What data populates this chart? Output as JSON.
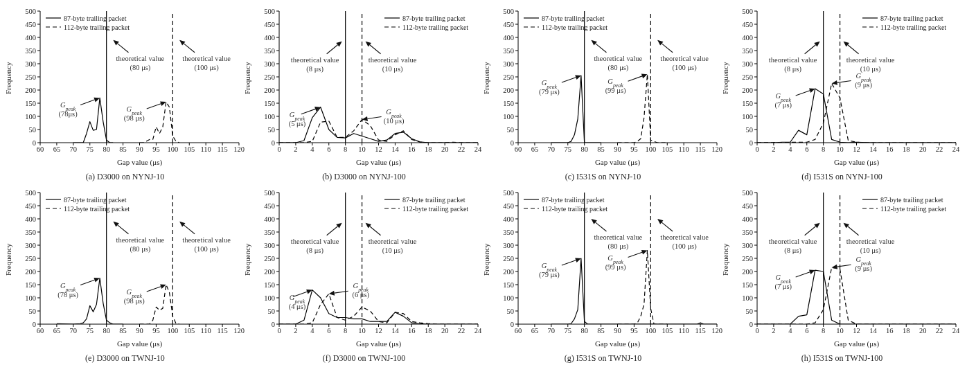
{
  "chart_data": [
    {
      "type": "line",
      "title": "(a) D3000 on NYNJ-10",
      "xlabel": "Gap value (μs)",
      "ylabel": "Frequency",
      "xlim": [
        60,
        120
      ],
      "xticks": [
        60,
        65,
        70,
        75,
        80,
        85,
        90,
        95,
        100,
        105,
        110,
        115,
        120
      ],
      "ylim": [
        0,
        500
      ],
      "yticks": [
        0,
        50,
        100,
        150,
        200,
        250,
        300,
        350,
        400,
        450,
        500
      ],
      "legend": "top left",
      "marker": "none",
      "series": [
        {
          "name": "87-byte trailing packet",
          "color": "#000000",
          "line_style": "solid",
          "x": [
            70,
            71,
            72,
            73,
            74,
            75,
            76,
            77,
            78,
            79,
            80,
            81,
            82
          ],
          "values": [
            0,
            0,
            0,
            0,
            35,
            80,
            47,
            50,
            170,
            80,
            10,
            0,
            0
          ]
        },
        {
          "name": "112-byte trailing packet",
          "color": "#000000",
          "line_style": "dashed",
          "x": [
            90,
            91,
            92,
            93,
            94,
            95,
            96,
            97,
            98,
            99,
            100,
            101,
            102
          ],
          "values": [
            0,
            0,
            5,
            12,
            12,
            60,
            35,
            60,
            155,
            135,
            25,
            5,
            0
          ]
        }
      ],
      "ref_lines": [
        {
          "axis": "x",
          "value": 80,
          "color": "#000000",
          "line_style": "solid"
        },
        {
          "axis": "x",
          "value": 100,
          "color": "#000000",
          "line_style": "dashed"
        }
      ],
      "annotations": [
        {
          "text": "theoretical value (80 μs)",
          "x": 81,
          "y": 390
        },
        {
          "text": "theoretical value (100 μs)",
          "x": 101,
          "y": 390
        },
        {
          "text": "G$_{peak}$ (78μs)",
          "x": 78,
          "y": 170
        },
        {
          "text": "G$_{peak}$ (98 μs)",
          "x": 98,
          "y": 155
        }
      ]
    },
    {
      "type": "line",
      "title": "(b) D3000 on NYNJ-100",
      "xlabel": "Gap value (μs)",
      "ylabel": "Frequency",
      "xlim": [
        0,
        24
      ],
      "xticks": [
        0,
        2,
        4,
        6,
        8,
        10,
        12,
        14,
        16,
        18,
        20,
        22,
        24
      ],
      "ylim": [
        0,
        500
      ],
      "yticks": [
        0,
        50,
        100,
        150,
        200,
        250,
        300,
        350,
        400,
        450,
        500
      ],
      "legend": "top right",
      "marker": "none",
      "series": [
        {
          "name": "87-byte trailing packet",
          "color": "#000000",
          "line_style": "solid",
          "x": [
            0,
            1,
            2,
            3,
            4,
            5,
            6,
            7,
            8,
            9,
            10,
            11,
            12,
            13,
            14,
            15,
            16,
            17,
            18,
            19,
            20,
            21,
            22,
            23,
            24
          ],
          "values": [
            0,
            0,
            0,
            8,
            95,
            135,
            50,
            20,
            18,
            35,
            25,
            15,
            5,
            10,
            35,
            40,
            15,
            3,
            0,
            0,
            0,
            0,
            0,
            0,
            0
          ]
        },
        {
          "name": "112-byte trailing packet",
          "color": "#000000",
          "line_style": "dashed",
          "x": [
            0,
            1,
            2,
            3,
            4,
            5,
            6,
            7,
            8,
            9,
            10,
            11,
            12,
            13,
            14,
            15,
            16,
            17,
            18,
            19,
            20,
            21,
            22,
            23,
            24
          ],
          "values": [
            0,
            0,
            0,
            0,
            5,
            78,
            82,
            20,
            20,
            45,
            88,
            65,
            10,
            5,
            30,
            45,
            12,
            2,
            0,
            0,
            0,
            2,
            0,
            0,
            0
          ]
        }
      ],
      "ref_lines": [
        {
          "axis": "x",
          "value": 8,
          "color": "#000000",
          "line_style": "solid"
        },
        {
          "axis": "x",
          "value": 10,
          "color": "#000000",
          "line_style": "dashed"
        }
      ],
      "annotations": [
        {
          "text": "theoretical value (8 μs)",
          "x": 8,
          "y": 385
        },
        {
          "text": "theoretical value (10 μs)",
          "x": 10,
          "y": 385
        },
        {
          "text": "G$_{peak}$ (5 μs)",
          "x": 5,
          "y": 135
        },
        {
          "text": "G$_{peak}$ (10 μs)",
          "x": 10,
          "y": 88
        }
      ]
    },
    {
      "type": "line",
      "title": "(c) I531S on NYNJ-10",
      "xlabel": "Gap value (μs)",
      "ylabel": "Frequency",
      "xlim": [
        60,
        120
      ],
      "xticks": [
        60,
        65,
        70,
        75,
        80,
        85,
        90,
        95,
        100,
        105,
        110,
        115,
        120
      ],
      "ylim": [
        0,
        500
      ],
      "yticks": [
        0,
        50,
        100,
        150,
        200,
        250,
        300,
        350,
        400,
        450,
        500
      ],
      "legend": "top left",
      "marker": "none",
      "series": [
        {
          "name": "87-byte trailing packet",
          "color": "#000000",
          "line_style": "solid",
          "x": [
            70,
            75,
            76,
            77,
            78,
            79,
            80,
            81,
            85
          ],
          "values": [
            0,
            0,
            5,
            30,
            90,
            255,
            0,
            0,
            0
          ]
        },
        {
          "name": "112-byte trailing packet",
          "color": "#000000",
          "line_style": "dashed",
          "x": [
            90,
            95,
            96,
            97,
            98,
            99,
            100,
            101,
            102,
            105
          ],
          "values": [
            0,
            0,
            5,
            15,
            95,
            260,
            10,
            5,
            0,
            0
          ]
        }
      ],
      "ref_lines": [
        {
          "axis": "x",
          "value": 80,
          "color": "#000000",
          "line_style": "solid"
        },
        {
          "axis": "x",
          "value": 100,
          "color": "#000000",
          "line_style": "dashed"
        }
      ],
      "annotations": [
        {
          "text": "theoretical value (80 μs)",
          "x": 81,
          "y": 390
        },
        {
          "text": "theoretical value (100 μs)",
          "x": 101,
          "y": 390
        },
        {
          "text": "G$_{peak}$ (79 μs)",
          "x": 79,
          "y": 255
        },
        {
          "text": "G$_{peak}$ (99 μs)",
          "x": 99,
          "y": 260
        }
      ]
    },
    {
      "type": "line",
      "title": "(d) I531S on NYNJ-100",
      "xlabel": "Gap value (μs)",
      "ylabel": "Frequency",
      "xlim": [
        0,
        24
      ],
      "xticks": [
        0,
        2,
        4,
        6,
        8,
        10,
        12,
        14,
        16,
        18,
        20,
        22,
        24
      ],
      "ylim": [
        0,
        500
      ],
      "yticks": [
        0,
        50,
        100,
        150,
        200,
        250,
        300,
        350,
        400,
        450,
        500
      ],
      "legend": "top right",
      "marker": "none",
      "series": [
        {
          "name": "87-byte trailing packet",
          "color": "#000000",
          "line_style": "solid",
          "x": [
            0,
            2,
            3,
            4,
            5,
            6,
            7,
            8,
            9,
            10,
            11,
            12,
            14,
            24
          ],
          "values": [
            0,
            0,
            2,
            2,
            47,
            30,
            205,
            185,
            12,
            2,
            0,
            2,
            0,
            0
          ]
        },
        {
          "name": "112-byte trailing packet",
          "color": "#000000",
          "line_style": "dashed",
          "x": [
            0,
            6,
            7,
            8,
            9,
            10,
            11,
            12,
            13,
            24
          ],
          "values": [
            0,
            2,
            12,
            75,
            225,
            170,
            8,
            2,
            0,
            0
          ]
        }
      ],
      "ref_lines": [
        {
          "axis": "x",
          "value": 8,
          "color": "#000000",
          "line_style": "solid"
        },
        {
          "axis": "x",
          "value": 10,
          "color": "#000000",
          "line_style": "dashed"
        }
      ],
      "annotations": [
        {
          "text": "theoretical value (8 μs)",
          "x": 8,
          "y": 385
        },
        {
          "text": "theoretical value (10 μs)",
          "x": 10,
          "y": 385
        },
        {
          "text": "G$_{peak}$ (7 μs)",
          "x": 7,
          "y": 205
        },
        {
          "text": "G$_{peak}$ (9 μs)",
          "x": 9,
          "y": 225
        }
      ]
    },
    {
      "type": "line",
      "title": "(e) D3000 on TWNJ-10",
      "xlabel": "Gap value (μs)",
      "ylabel": "Frequency",
      "xlim": [
        60,
        120
      ],
      "xticks": [
        60,
        65,
        70,
        75,
        80,
        85,
        90,
        95,
        100,
        105,
        110,
        115,
        120
      ],
      "ylim": [
        0,
        500
      ],
      "yticks": [
        0,
        50,
        100,
        150,
        200,
        250,
        300,
        350,
        400,
        450,
        500
      ],
      "legend": "top left",
      "marker": "none",
      "series": [
        {
          "name": "87-byte trailing packet",
          "color": "#000000",
          "line_style": "solid",
          "x": [
            65,
            70,
            72,
            73,
            74,
            75,
            76,
            77,
            78,
            79,
            80,
            81,
            82,
            85
          ],
          "values": [
            2,
            0,
            2,
            5,
            20,
            70,
            47,
            75,
            175,
            80,
            15,
            5,
            0,
            0
          ]
        },
        {
          "name": "112-byte trailing packet",
          "color": "#000000",
          "line_style": "dashed",
          "x": [
            90,
            93,
            94,
            95,
            96,
            97,
            98,
            99,
            100,
            101,
            102
          ],
          "values": [
            0,
            0,
            15,
            65,
            53,
            60,
            150,
            120,
            30,
            2,
            0
          ]
        }
      ],
      "ref_lines": [
        {
          "axis": "x",
          "value": 80,
          "color": "#000000",
          "line_style": "solid"
        },
        {
          "axis": "x",
          "value": 100,
          "color": "#000000",
          "line_style": "dashed"
        }
      ],
      "annotations": [
        {
          "text": "theoretical value (80 μs)",
          "x": 81,
          "y": 390
        },
        {
          "text": "theoretical value (100 μs)",
          "x": 101,
          "y": 390
        },
        {
          "text": "G$_{peak}$ (78 μs)",
          "x": 78,
          "y": 175
        },
        {
          "text": "G$_{peak}$ (98 μs)",
          "x": 98,
          "y": 150
        }
      ]
    },
    {
      "type": "line",
      "title": "(f) D3000 on TWNJ-100",
      "xlabel": "Gap value (μs)",
      "ylabel": "Frequency",
      "xlim": [
        0,
        24
      ],
      "xticks": [
        0,
        2,
        4,
        6,
        8,
        10,
        12,
        14,
        16,
        18,
        20,
        22,
        24
      ],
      "ylim": [
        0,
        500
      ],
      "yticks": [
        0,
        50,
        100,
        150,
        200,
        250,
        300,
        350,
        400,
        450,
        500
      ],
      "legend": "top right",
      "marker": "none",
      "series": [
        {
          "name": "87-byte trailing packet",
          "color": "#000000",
          "line_style": "solid",
          "x": [
            0,
            2,
            3,
            4,
            5,
            6,
            7,
            8,
            9,
            10,
            11,
            12,
            13,
            14,
            15,
            16,
            17,
            18,
            24
          ],
          "values": [
            0,
            0,
            15,
            130,
            100,
            40,
            25,
            25,
            20,
            20,
            10,
            10,
            10,
            45,
            30,
            5,
            2,
            0,
            0
          ]
        },
        {
          "name": "112-byte trailing packet",
          "color": "#000000",
          "line_style": "dashed",
          "x": [
            0,
            3,
            4,
            5,
            6,
            7,
            8,
            9,
            10,
            11,
            12,
            13,
            14,
            15,
            16,
            17,
            18,
            19,
            24
          ],
          "values": [
            0,
            0,
            5,
            75,
            115,
            25,
            15,
            30,
            65,
            50,
            10,
            5,
            45,
            40,
            10,
            5,
            2,
            0,
            0
          ]
        }
      ],
      "ref_lines": [
        {
          "axis": "x",
          "value": 8,
          "color": "#000000",
          "line_style": "solid"
        },
        {
          "axis": "x",
          "value": 10,
          "color": "#000000",
          "line_style": "dashed"
        }
      ],
      "annotations": [
        {
          "text": "theoretical value (8 μs)",
          "x": 8,
          "y": 385
        },
        {
          "text": "theoretical value (10 μs)",
          "x": 10,
          "y": 385
        },
        {
          "text": "G$_{peak}$ (4 μs)",
          "x": 4,
          "y": 130
        },
        {
          "text": "G$_{peak}$ (6 μs)",
          "x": 6,
          "y": 115
        }
      ]
    },
    {
      "type": "line",
      "title": "(g) I531S on TWNJ-10",
      "xlabel": "Gap value (μs)",
      "ylabel": "Frequency",
      "xlim": [
        60,
        120
      ],
      "xticks": [
        60,
        65,
        70,
        75,
        80,
        85,
        90,
        95,
        100,
        105,
        110,
        115,
        120
      ],
      "ylim": [
        0,
        500
      ],
      "yticks": [
        0,
        50,
        100,
        150,
        200,
        250,
        300,
        350,
        400,
        450,
        500
      ],
      "legend": "top left",
      "marker": "none",
      "series": [
        {
          "name": "87-byte trailing packet",
          "color": "#000000",
          "line_style": "solid",
          "x": [
            70,
            75,
            76,
            77,
            78,
            79,
            80,
            81,
            85,
            114,
            115,
            116,
            120
          ],
          "values": [
            0,
            0,
            2,
            20,
            55,
            250,
            10,
            0,
            0,
            0,
            5,
            0,
            0
          ]
        },
        {
          "name": "112-byte trailing packet",
          "color": "#000000",
          "line_style": "dashed",
          "x": [
            90,
            95,
            96,
            97,
            98,
            99,
            100,
            101,
            105
          ],
          "values": [
            0,
            0,
            5,
            30,
            75,
            280,
            60,
            0,
            0
          ]
        }
      ],
      "ref_lines": [
        {
          "axis": "x",
          "value": 80,
          "color": "#000000",
          "line_style": "solid"
        },
        {
          "axis": "x",
          "value": 100,
          "color": "#000000",
          "line_style": "dashed"
        }
      ],
      "annotations": [
        {
          "text": "theoretical value (80 μs)",
          "x": 81,
          "y": 400
        },
        {
          "text": "theoretical value (100 μs)",
          "x": 101,
          "y": 400
        },
        {
          "text": "G$_{peak}$ (79 μs)",
          "x": 79,
          "y": 250
        },
        {
          "text": "G$_{peak}$ (99 μs)",
          "x": 99,
          "y": 280
        }
      ]
    },
    {
      "type": "line",
      "title": "(h) I531S on TWNJ-100",
      "xlabel": "Gap value (μs)",
      "ylabel": "Frequency",
      "xlim": [
        0,
        24
      ],
      "xticks": [
        0,
        2,
        4,
        6,
        8,
        10,
        12,
        14,
        16,
        18,
        20,
        22,
        24
      ],
      "ylim": [
        0,
        500
      ],
      "yticks": [
        0,
        50,
        100,
        150,
        200,
        250,
        300,
        350,
        400,
        450,
        500
      ],
      "legend": "top right",
      "marker": "none",
      "series": [
        {
          "name": "87-byte trailing packet",
          "color": "#000000",
          "line_style": "solid",
          "x": [
            0,
            4,
            5,
            6,
            7,
            8,
            9,
            10,
            11,
            24
          ],
          "values": [
            0,
            0,
            30,
            35,
            205,
            200,
            15,
            0,
            0,
            0
          ]
        },
        {
          "name": "112-byte trailing packet",
          "color": "#000000",
          "line_style": "dashed",
          "x": [
            0,
            6,
            7,
            8,
            9,
            10,
            11,
            12,
            24
          ],
          "values": [
            0,
            0,
            5,
            55,
            215,
            210,
            15,
            0,
            0
          ]
        }
      ],
      "ref_lines": [
        {
          "axis": "x",
          "value": 8,
          "color": "#000000",
          "line_style": "solid"
        },
        {
          "axis": "x",
          "value": 10,
          "color": "#000000",
          "line_style": "dashed"
        }
      ],
      "annotations": [
        {
          "text": "theoretical value (8 μs)",
          "x": 8,
          "y": 385
        },
        {
          "text": "theoretical value (10 μs)",
          "x": 10,
          "y": 385
        },
        {
          "text": "G$_{peak}$ (7 μs)",
          "x": 7,
          "y": 205
        },
        {
          "text": "G$_{peak}$ (9 μs)",
          "x": 9,
          "y": 215
        }
      ]
    }
  ]
}
